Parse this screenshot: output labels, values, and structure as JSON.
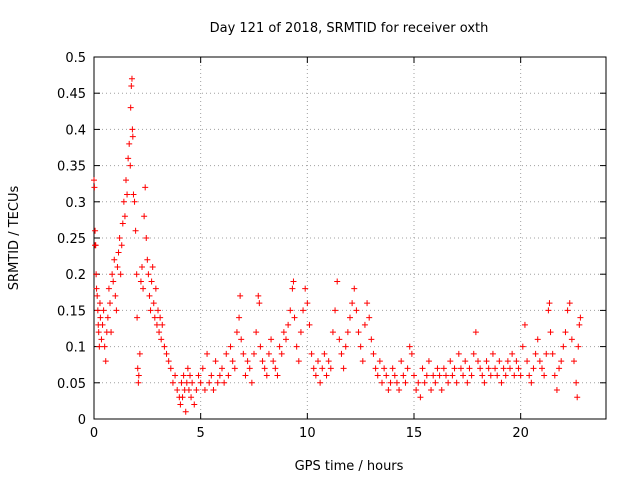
{
  "chart_data": {
    "type": "scatter",
    "title": "Day 121 of 2018, SRMTID for receiver oxth",
    "xlabel": "GPS time / hours",
    "ylabel": "SRMTID / TECUs",
    "xlim": [
      0,
      24
    ],
    "ylim": [
      0,
      0.5
    ],
    "grid": true,
    "marker": "+",
    "marker_color": "#ff0000",
    "x_ticks": [
      {
        "value": 0,
        "label": "0"
      },
      {
        "value": 5,
        "label": "5"
      },
      {
        "value": 10,
        "label": "10"
      },
      {
        "value": 15,
        "label": "15"
      },
      {
        "value": 20,
        "label": "20"
      }
    ],
    "y_ticks": [
      {
        "value": 0,
        "label": "0"
      },
      {
        "value": 0.05,
        "label": "0.05"
      },
      {
        "value": 0.1,
        "label": "0.1"
      },
      {
        "value": 0.15,
        "label": "0.15"
      },
      {
        "value": 0.2,
        "label": "0.2"
      },
      {
        "value": 0.25,
        "label": "0.25"
      },
      {
        "value": 0.3,
        "label": "0.3"
      },
      {
        "value": 0.35,
        "label": "0.35"
      },
      {
        "value": 0.4,
        "label": "0.4"
      },
      {
        "value": 0.45,
        "label": "0.45"
      },
      {
        "value": 0.5,
        "label": "0.5"
      }
    ],
    "points": [
      [
        0.0,
        0.33
      ],
      [
        0.02,
        0.32
      ],
      [
        0.05,
        0.26
      ],
      [
        0.05,
        0.24
      ],
      [
        0.08,
        0.24
      ],
      [
        0.1,
        0.2
      ],
      [
        0.12,
        0.18
      ],
      [
        0.15,
        0.17
      ],
      [
        0.18,
        0.15
      ],
      [
        0.2,
        0.13
      ],
      [
        0.22,
        0.12
      ],
      [
        0.25,
        0.1
      ],
      [
        0.28,
        0.16
      ],
      [
        0.3,
        0.14
      ],
      [
        0.35,
        0.11
      ],
      [
        0.4,
        0.13
      ],
      [
        0.45,
        0.15
      ],
      [
        0.5,
        0.1
      ],
      [
        0.55,
        0.08
      ],
      [
        0.6,
        0.12
      ],
      [
        0.65,
        0.14
      ],
      [
        0.7,
        0.18
      ],
      [
        0.75,
        0.16
      ],
      [
        0.8,
        0.12
      ],
      [
        0.85,
        0.2
      ],
      [
        0.9,
        0.19
      ],
      [
        0.95,
        0.22
      ],
      [
        1.0,
        0.17
      ],
      [
        1.05,
        0.15
      ],
      [
        1.1,
        0.21
      ],
      [
        1.15,
        0.23
      ],
      [
        1.2,
        0.25
      ],
      [
        1.25,
        0.2
      ],
      [
        1.3,
        0.24
      ],
      [
        1.35,
        0.27
      ],
      [
        1.4,
        0.3
      ],
      [
        1.45,
        0.28
      ],
      [
        1.5,
        0.33
      ],
      [
        1.55,
        0.31
      ],
      [
        1.6,
        0.36
      ],
      [
        1.65,
        0.38
      ],
      [
        1.7,
        0.35
      ],
      [
        1.72,
        0.43
      ],
      [
        1.75,
        0.46
      ],
      [
        1.78,
        0.47
      ],
      [
        1.8,
        0.4
      ],
      [
        1.82,
        0.39
      ],
      [
        1.85,
        0.31
      ],
      [
        1.9,
        0.3
      ],
      [
        1.95,
        0.26
      ],
      [
        2.0,
        0.2
      ],
      [
        2.02,
        0.14
      ],
      [
        2.05,
        0.07
      ],
      [
        2.08,
        0.05
      ],
      [
        2.1,
        0.06
      ],
      [
        2.15,
        0.09
      ],
      [
        2.2,
        0.19
      ],
      [
        2.25,
        0.21
      ],
      [
        2.3,
        0.18
      ],
      [
        2.35,
        0.28
      ],
      [
        2.4,
        0.32
      ],
      [
        2.45,
        0.25
      ],
      [
        2.5,
        0.22
      ],
      [
        2.55,
        0.2
      ],
      [
        2.6,
        0.17
      ],
      [
        2.65,
        0.15
      ],
      [
        2.7,
        0.19
      ],
      [
        2.75,
        0.21
      ],
      [
        2.8,
        0.16
      ],
      [
        2.85,
        0.14
      ],
      [
        2.9,
        0.18
      ],
      [
        2.95,
        0.13
      ],
      [
        3.0,
        0.15
      ],
      [
        3.05,
        0.12
      ],
      [
        3.1,
        0.14
      ],
      [
        3.15,
        0.11
      ],
      [
        3.2,
        0.13
      ],
      [
        3.3,
        0.1
      ],
      [
        3.4,
        0.09
      ],
      [
        3.5,
        0.08
      ],
      [
        3.6,
        0.07
      ],
      [
        3.7,
        0.05
      ],
      [
        3.8,
        0.06
      ],
      [
        3.9,
        0.04
      ],
      [
        4.0,
        0.03
      ],
      [
        4.05,
        0.02
      ],
      [
        4.1,
        0.05
      ],
      [
        4.15,
        0.03
      ],
      [
        4.2,
        0.06
      ],
      [
        4.25,
        0.04
      ],
      [
        4.3,
        0.01
      ],
      [
        4.35,
        0.05
      ],
      [
        4.4,
        0.07
      ],
      [
        4.45,
        0.04
      ],
      [
        4.5,
        0.06
      ],
      [
        4.55,
        0.03
      ],
      [
        4.6,
        0.05
      ],
      [
        4.7,
        0.02
      ],
      [
        4.8,
        0.04
      ],
      [
        4.9,
        0.06
      ],
      [
        5.0,
        0.05
      ],
      [
        5.1,
        0.07
      ],
      [
        5.2,
        0.04
      ],
      [
        5.3,
        0.09
      ],
      [
        5.4,
        0.05
      ],
      [
        5.5,
        0.06
      ],
      [
        5.6,
        0.04
      ],
      [
        5.7,
        0.08
      ],
      [
        5.8,
        0.05
      ],
      [
        5.9,
        0.06
      ],
      [
        6.0,
        0.07
      ],
      [
        6.1,
        0.05
      ],
      [
        6.2,
        0.09
      ],
      [
        6.3,
        0.06
      ],
      [
        6.4,
        0.1
      ],
      [
        6.5,
        0.08
      ],
      [
        6.6,
        0.07
      ],
      [
        6.7,
        0.12
      ],
      [
        6.8,
        0.14
      ],
      [
        6.85,
        0.17
      ],
      [
        6.9,
        0.11
      ],
      [
        7.0,
        0.09
      ],
      [
        7.1,
        0.06
      ],
      [
        7.2,
        0.08
      ],
      [
        7.3,
        0.07
      ],
      [
        7.4,
        0.05
      ],
      [
        7.5,
        0.09
      ],
      [
        7.6,
        0.12
      ],
      [
        7.7,
        0.17
      ],
      [
        7.75,
        0.16
      ],
      [
        7.8,
        0.1
      ],
      [
        7.9,
        0.08
      ],
      [
        8.0,
        0.07
      ],
      [
        8.1,
        0.06
      ],
      [
        8.2,
        0.09
      ],
      [
        8.3,
        0.11
      ],
      [
        8.4,
        0.08
      ],
      [
        8.5,
        0.07
      ],
      [
        8.6,
        0.06
      ],
      [
        8.7,
        0.1
      ],
      [
        8.8,
        0.09
      ],
      [
        8.9,
        0.12
      ],
      [
        9.0,
        0.11
      ],
      [
        9.1,
        0.13
      ],
      [
        9.2,
        0.15
      ],
      [
        9.3,
        0.18
      ],
      [
        9.35,
        0.19
      ],
      [
        9.4,
        0.14
      ],
      [
        9.5,
        0.1
      ],
      [
        9.6,
        0.08
      ],
      [
        9.7,
        0.12
      ],
      [
        9.8,
        0.15
      ],
      [
        9.9,
        0.18
      ],
      [
        10.0,
        0.16
      ],
      [
        10.1,
        0.13
      ],
      [
        10.2,
        0.09
      ],
      [
        10.3,
        0.07
      ],
      [
        10.4,
        0.06
      ],
      [
        10.5,
        0.08
      ],
      [
        10.6,
        0.05
      ],
      [
        10.7,
        0.07
      ],
      [
        10.8,
        0.09
      ],
      [
        10.9,
        0.06
      ],
      [
        11.0,
        0.08
      ],
      [
        11.1,
        0.07
      ],
      [
        11.2,
        0.12
      ],
      [
        11.3,
        0.15
      ],
      [
        11.4,
        0.19
      ],
      [
        11.5,
        0.11
      ],
      [
        11.6,
        0.09
      ],
      [
        11.7,
        0.07
      ],
      [
        11.8,
        0.1
      ],
      [
        11.9,
        0.12
      ],
      [
        12.0,
        0.14
      ],
      [
        12.1,
        0.16
      ],
      [
        12.2,
        0.18
      ],
      [
        12.3,
        0.15
      ],
      [
        12.4,
        0.12
      ],
      [
        12.5,
        0.1
      ],
      [
        12.6,
        0.08
      ],
      [
        12.7,
        0.13
      ],
      [
        12.8,
        0.16
      ],
      [
        12.9,
        0.14
      ],
      [
        13.0,
        0.11
      ],
      [
        13.1,
        0.09
      ],
      [
        13.2,
        0.07
      ],
      [
        13.3,
        0.06
      ],
      [
        13.4,
        0.08
      ],
      [
        13.5,
        0.05
      ],
      [
        13.6,
        0.07
      ],
      [
        13.7,
        0.06
      ],
      [
        13.8,
        0.04
      ],
      [
        13.9,
        0.05
      ],
      [
        14.0,
        0.07
      ],
      [
        14.1,
        0.06
      ],
      [
        14.2,
        0.05
      ],
      [
        14.3,
        0.04
      ],
      [
        14.4,
        0.08
      ],
      [
        14.5,
        0.06
      ],
      [
        14.6,
        0.05
      ],
      [
        14.7,
        0.07
      ],
      [
        14.8,
        0.1
      ],
      [
        14.9,
        0.09
      ],
      [
        15.0,
        0.06
      ],
      [
        15.1,
        0.04
      ],
      [
        15.2,
        0.05
      ],
      [
        15.3,
        0.03
      ],
      [
        15.4,
        0.07
      ],
      [
        15.5,
        0.05
      ],
      [
        15.6,
        0.06
      ],
      [
        15.7,
        0.08
      ],
      [
        15.8,
        0.04
      ],
      [
        15.9,
        0.06
      ],
      [
        16.0,
        0.05
      ],
      [
        16.1,
        0.07
      ],
      [
        16.2,
        0.06
      ],
      [
        16.3,
        0.04
      ],
      [
        16.4,
        0.07
      ],
      [
        16.5,
        0.06
      ],
      [
        16.6,
        0.05
      ],
      [
        16.7,
        0.08
      ],
      [
        16.8,
        0.06
      ],
      [
        16.9,
        0.07
      ],
      [
        17.0,
        0.05
      ],
      [
        17.1,
        0.09
      ],
      [
        17.2,
        0.07
      ],
      [
        17.3,
        0.06
      ],
      [
        17.4,
        0.08
      ],
      [
        17.5,
        0.05
      ],
      [
        17.6,
        0.07
      ],
      [
        17.7,
        0.06
      ],
      [
        17.8,
        0.09
      ],
      [
        17.9,
        0.12
      ],
      [
        18.0,
        0.08
      ],
      [
        18.1,
        0.07
      ],
      [
        18.2,
        0.06
      ],
      [
        18.3,
        0.05
      ],
      [
        18.4,
        0.08
      ],
      [
        18.5,
        0.07
      ],
      [
        18.6,
        0.06
      ],
      [
        18.7,
        0.09
      ],
      [
        18.8,
        0.07
      ],
      [
        18.9,
        0.06
      ],
      [
        19.0,
        0.08
      ],
      [
        19.1,
        0.05
      ],
      [
        19.2,
        0.07
      ],
      [
        19.3,
        0.06
      ],
      [
        19.4,
        0.08
      ],
      [
        19.5,
        0.07
      ],
      [
        19.6,
        0.09
      ],
      [
        19.7,
        0.06
      ],
      [
        19.8,
        0.08
      ],
      [
        19.9,
        0.07
      ],
      [
        20.0,
        0.06
      ],
      [
        20.1,
        0.1
      ],
      [
        20.2,
        0.13
      ],
      [
        20.3,
        0.08
      ],
      [
        20.4,
        0.06
      ],
      [
        20.5,
        0.05
      ],
      [
        20.6,
        0.07
      ],
      [
        20.7,
        0.09
      ],
      [
        20.8,
        0.11
      ],
      [
        20.9,
        0.08
      ],
      [
        21.0,
        0.07
      ],
      [
        21.1,
        0.06
      ],
      [
        21.2,
        0.09
      ],
      [
        21.3,
        0.15
      ],
      [
        21.35,
        0.16
      ],
      [
        21.4,
        0.12
      ],
      [
        21.5,
        0.09
      ],
      [
        21.6,
        0.06
      ],
      [
        21.7,
        0.04
      ],
      [
        21.8,
        0.07
      ],
      [
        21.9,
        0.08
      ],
      [
        22.0,
        0.1
      ],
      [
        22.1,
        0.12
      ],
      [
        22.2,
        0.15
      ],
      [
        22.3,
        0.16
      ],
      [
        22.4,
        0.11
      ],
      [
        22.5,
        0.08
      ],
      [
        22.6,
        0.05
      ],
      [
        22.65,
        0.03
      ],
      [
        22.7,
        0.1
      ],
      [
        22.75,
        0.13
      ],
      [
        22.8,
        0.14
      ]
    ]
  }
}
